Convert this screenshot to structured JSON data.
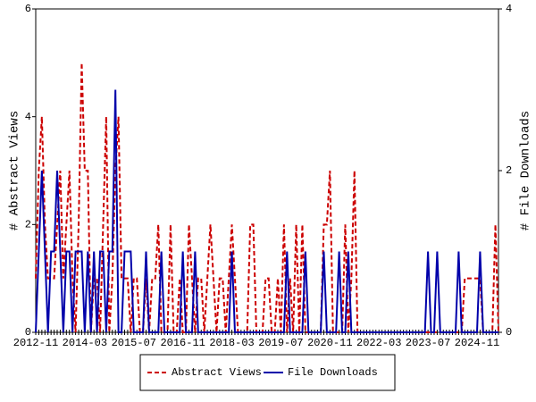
{
  "chart_data": {
    "type": "line",
    "y_label": "# Abstract Views",
    "y2_label": "# File Downloads",
    "categories": [
      "2012-11",
      null,
      null,
      null,
      null,
      null,
      null,
      null,
      null,
      null,
      null,
      null,
      null,
      null,
      null,
      null,
      "2014-03",
      null,
      null,
      null,
      null,
      null,
      null,
      null,
      null,
      null,
      null,
      null,
      null,
      null,
      null,
      null,
      "2015-07",
      null,
      null,
      null,
      null,
      null,
      null,
      null,
      null,
      null,
      null,
      null,
      null,
      null,
      null,
      null,
      "2016-11",
      null,
      null,
      null,
      null,
      null,
      null,
      null,
      null,
      null,
      null,
      null,
      null,
      null,
      null,
      null,
      "2018-03",
      null,
      null,
      null,
      null,
      null,
      null,
      null,
      null,
      null,
      null,
      null,
      null,
      null,
      null,
      null,
      "2019-07",
      null,
      null,
      null,
      null,
      null,
      null,
      null,
      null,
      null,
      null,
      null,
      null,
      null,
      null,
      null,
      "2020-11",
      null,
      null,
      null,
      null,
      null,
      null,
      null,
      null,
      null,
      null,
      null,
      null,
      null,
      null,
      null,
      "2022-03",
      null,
      null,
      null,
      null,
      null,
      null,
      null,
      null,
      null,
      null,
      null,
      null,
      null,
      null,
      null,
      "2023-07",
      null,
      null,
      null,
      null,
      null,
      null,
      null,
      null,
      null,
      null,
      null,
      null,
      null,
      null,
      null,
      "2024-11",
      null,
      null,
      null,
      null,
      null,
      null,
      null
    ],
    "series": [
      {
        "name": "Abstract Views",
        "color": "#cc0000",
        "dash": true,
        "values": [
          1,
          3,
          4,
          2,
          1,
          1,
          1,
          2,
          3,
          1,
          2,
          3,
          1,
          0,
          2,
          5,
          3,
          3,
          0,
          1,
          1,
          0,
          2,
          4,
          0,
          1,
          3,
          4,
          1,
          1,
          1,
          0,
          1,
          1,
          0,
          0,
          1,
          0,
          1,
          1,
          2,
          0,
          0,
          0,
          2,
          0,
          0,
          1,
          0,
          0,
          2,
          1,
          0,
          1,
          1,
          0,
          1,
          2,
          1,
          0,
          1,
          1,
          0,
          1,
          2,
          1,
          0,
          0,
          0,
          0,
          2,
          2,
          0,
          0,
          0,
          1,
          1,
          0,
          0,
          1,
          0,
          2,
          0,
          1,
          0,
          2,
          0,
          2,
          0,
          0,
          0,
          0,
          0,
          0,
          2,
          2,
          3,
          0,
          0,
          0,
          0,
          2,
          0,
          1,
          3,
          0,
          0,
          0,
          0,
          0,
          0,
          0,
          0,
          0,
          0,
          0,
          0,
          0,
          0,
          0,
          0,
          0,
          0,
          0,
          0,
          0,
          0,
          0,
          0,
          0,
          0,
          0,
          0,
          0,
          0,
          0,
          0,
          0,
          0,
          0,
          1,
          1,
          1,
          1,
          1,
          1,
          0,
          0,
          0,
          0,
          2,
          0
        ]
      },
      {
        "name": "File Downloads",
        "color": "#0000aa",
        "dash": false,
        "axis": "y2",
        "values": [
          0,
          1,
          2,
          1,
          0,
          1,
          1,
          2,
          1,
          0,
          1,
          1,
          0,
          1,
          1,
          1,
          0,
          1,
          0,
          1,
          0,
          1,
          1,
          0,
          1,
          1,
          3,
          0,
          0,
          1,
          1,
          1,
          0,
          0,
          0,
          0,
          1,
          0,
          0,
          0,
          0,
          1,
          0,
          0,
          0,
          0,
          0,
          0,
          1,
          0,
          0,
          0,
          1,
          0,
          0,
          0,
          0,
          0,
          0,
          0,
          0,
          0,
          0,
          0,
          1,
          0,
          0,
          0,
          0,
          0,
          0,
          0,
          0,
          0,
          0,
          0,
          0,
          0,
          0,
          0,
          0,
          0,
          1,
          0,
          0,
          0,
          0,
          0,
          1,
          0,
          0,
          0,
          0,
          0,
          1,
          0,
          0,
          0,
          0,
          1,
          0,
          0,
          1,
          0,
          0,
          0,
          0,
          0,
          0,
          0,
          0,
          0,
          0,
          0,
          0,
          0,
          0,
          0,
          0,
          0,
          0,
          0,
          0,
          0,
          0,
          0,
          0,
          0,
          1,
          0,
          0,
          1,
          0,
          0,
          0,
          0,
          0,
          0,
          1,
          0,
          0,
          0,
          0,
          0,
          0,
          1,
          0,
          0,
          0,
          0,
          0,
          0
        ]
      }
    ],
    "ylim": [
      0,
      6
    ],
    "yticks": [
      0,
      2,
      4,
      6
    ],
    "y2lim": [
      0,
      4
    ],
    "y2ticks": [
      0,
      2,
      4
    ]
  }
}
